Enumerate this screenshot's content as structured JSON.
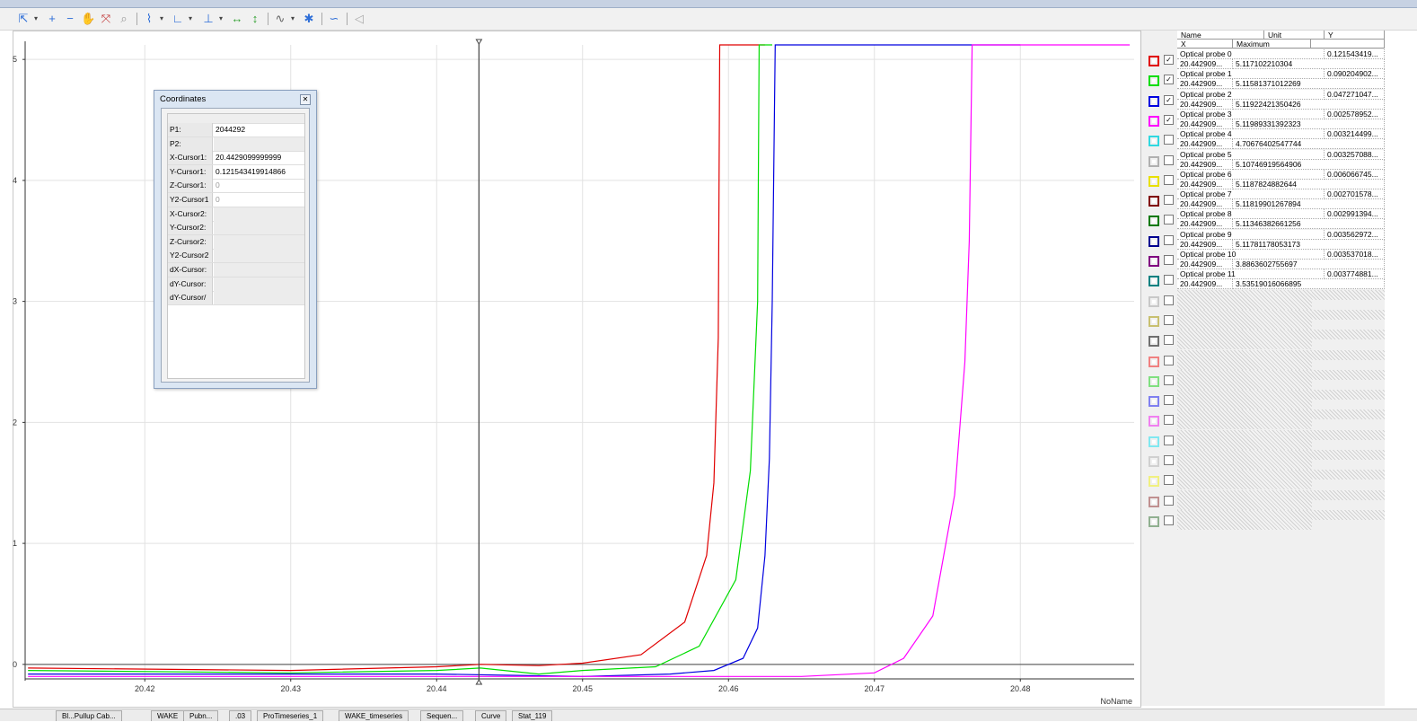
{
  "toolbar": {
    "icons": [
      "select-tool",
      "zoom-in",
      "zoom-out",
      "pan",
      "auto-scale",
      "zoom-window",
      "curve-options",
      "axis-options",
      "cursor-options",
      "fit-x",
      "fit-y",
      "analysis",
      "marker",
      "smoothing",
      "mute"
    ]
  },
  "chart_data": {
    "type": "line",
    "x_axis_name": "NoName",
    "xlim": [
      20.4118,
      20.4878
    ],
    "ylim": [
      -0.12,
      5.12
    ],
    "x_ticks": [
      "20.42",
      "20.43",
      "20.44",
      "20.45",
      "20.46",
      "20.47",
      "20.48"
    ],
    "y_ticks": [
      "0",
      "1",
      "2",
      "3",
      "4",
      "5"
    ],
    "grid": true,
    "cursor_x": 20.4429,
    "series": [
      {
        "name": "Optical probe 0",
        "color": "#e00000",
        "x": [
          20.412,
          20.43,
          20.44,
          20.443,
          20.447,
          20.45,
          20.454,
          20.457,
          20.4585,
          20.459,
          20.4593,
          20.4594,
          20.46,
          20.4625
        ],
        "y": [
          -0.03,
          -0.05,
          -0.02,
          0.0,
          -0.01,
          0.01,
          0.08,
          0.35,
          0.9,
          1.5,
          2.7,
          5.12,
          5.12,
          5.12
        ]
      },
      {
        "name": "Optical probe 1",
        "color": "#00dd00",
        "x": [
          20.412,
          20.43,
          20.44,
          20.443,
          20.447,
          20.45,
          20.455,
          20.458,
          20.4605,
          20.4615,
          20.462,
          20.4621,
          20.463
        ],
        "y": [
          -0.05,
          -0.07,
          -0.05,
          -0.03,
          -0.08,
          -0.05,
          -0.02,
          0.15,
          0.7,
          1.6,
          3.0,
          5.12,
          5.12
        ]
      },
      {
        "name": "Optical probe 2",
        "color": "#0000e0",
        "x": [
          20.412,
          20.43,
          20.44,
          20.45,
          20.456,
          20.459,
          20.461,
          20.462,
          20.4625,
          20.4628,
          20.463,
          20.4632,
          20.47,
          20.48
        ],
        "y": [
          -0.08,
          -0.08,
          -0.08,
          -0.1,
          -0.08,
          -0.05,
          0.05,
          0.3,
          0.9,
          1.7,
          3.0,
          5.12,
          5.12,
          5.12
        ]
      },
      {
        "name": "Optical probe 3",
        "color": "#ff00ff",
        "x": [
          20.412,
          20.44,
          20.45,
          20.465,
          20.47,
          20.472,
          20.474,
          20.4755,
          20.4762,
          20.4765,
          20.4767,
          20.477,
          20.4875
        ],
        "y": [
          -0.1,
          -0.1,
          -0.1,
          -0.1,
          -0.07,
          0.05,
          0.4,
          1.4,
          2.5,
          3.5,
          5.12,
          5.12,
          5.12
        ]
      }
    ]
  },
  "coords": {
    "title": "Coordinates",
    "close_label": "✕",
    "rows": [
      {
        "label": "P1:",
        "value": "2044292"
      },
      {
        "label": "P2:",
        "value": ""
      },
      {
        "label": "X-Cursor1:",
        "value": "20.4429099999999"
      },
      {
        "label": "Y-Cursor1:",
        "value": "0.121543419914866"
      },
      {
        "label": "Z-Cursor1:",
        "value": "0"
      },
      {
        "label": "Y2-Cursor1",
        "value": "0"
      },
      {
        "label": "X-Cursor2:",
        "value": ""
      },
      {
        "label": "Y-Cursor2:",
        "value": ""
      },
      {
        "label": "Z-Cursor2:",
        "value": ""
      },
      {
        "label": "Y2-Cursor2",
        "value": ""
      },
      {
        "label": "dX-Cursor:",
        "value": ""
      },
      {
        "label": "dY-Cursor:",
        "value": ""
      },
      {
        "label": "dY-Cursor/",
        "value": ""
      }
    ]
  },
  "table": {
    "headers": {
      "name": "Name",
      "unit": "Unit",
      "y": "Y",
      "x": "X",
      "max": "Maximum"
    },
    "rows": [
      {
        "color": "#e00000",
        "checked": true,
        "name": "Optical probe 0",
        "y": "0.121543419...",
        "x": "20.442909...",
        "max": "5.117102210304"
      },
      {
        "color": "#00dd00",
        "checked": true,
        "name": "Optical probe 1",
        "y": "0.090204902...",
        "x": "20.442909...",
        "max": "5.11581371012269"
      },
      {
        "color": "#0000e0",
        "checked": true,
        "name": "Optical probe 2",
        "y": "0.047271047...",
        "x": "20.442909...",
        "max": "5.11922421350426"
      },
      {
        "color": "#ff00ff",
        "checked": true,
        "name": "Optical probe 3",
        "y": "0.002578952...",
        "x": "20.442909...",
        "max": "5.11989331392323"
      },
      {
        "color": "#30d8e0",
        "checked": false,
        "name": "Optical probe 4",
        "y": "0.003214499...",
        "x": "20.442909...",
        "max": "4.70676402547744"
      },
      {
        "color": "#b0b0b0",
        "checked": false,
        "name": "Optical probe 5",
        "y": "0.003257088...",
        "x": "20.442909...",
        "max": "5.10746919564906"
      },
      {
        "color": "#e8e000",
        "checked": false,
        "name": "Optical probe 6",
        "y": "0.006066745...",
        "x": "20.442909...",
        "max": "5.1187824882644"
      },
      {
        "color": "#800000",
        "checked": false,
        "name": "Optical probe 7",
        "y": "0.002701578...",
        "x": "20.442909...",
        "max": "5.11819901267894"
      },
      {
        "color": "#007800",
        "checked": false,
        "name": "Optical probe 8",
        "y": "0.002991394...",
        "x": "20.442909...",
        "max": "5.11346382661256"
      },
      {
        "color": "#000090",
        "checked": false,
        "name": "Optical probe 9",
        "y": "0.003562972...",
        "x": "20.442909...",
        "max": "5.11781178053173"
      },
      {
        "color": "#800080",
        "checked": false,
        "name": "Optical probe 10",
        "y": "0.003537018...",
        "x": "20.442909...",
        "max": "3.8863602755697"
      },
      {
        "color": "#008080",
        "checked": false,
        "name": "Optical probe 11",
        "y": "0.003774881...",
        "x": "20.442909...",
        "max": "3.53519016066895"
      }
    ],
    "empty_swatches": [
      "#c8c8c8",
      "#c8c070",
      "#707070",
      "#f08080",
      "#80e080",
      "#8080f0",
      "#f080f0",
      "#80e8f0",
      "#d0d0d0",
      "#f0f080",
      "#c09090",
      "#90b090"
    ]
  },
  "bottom_tabs": [
    "Bl...Pullup Cab...",
    "WAKE",
    "Pubn...",
    ".03",
    "ProTimeseries_1",
    "WAKE_timeseries",
    "Sequen...",
    "Curve",
    "Stat_119"
  ]
}
